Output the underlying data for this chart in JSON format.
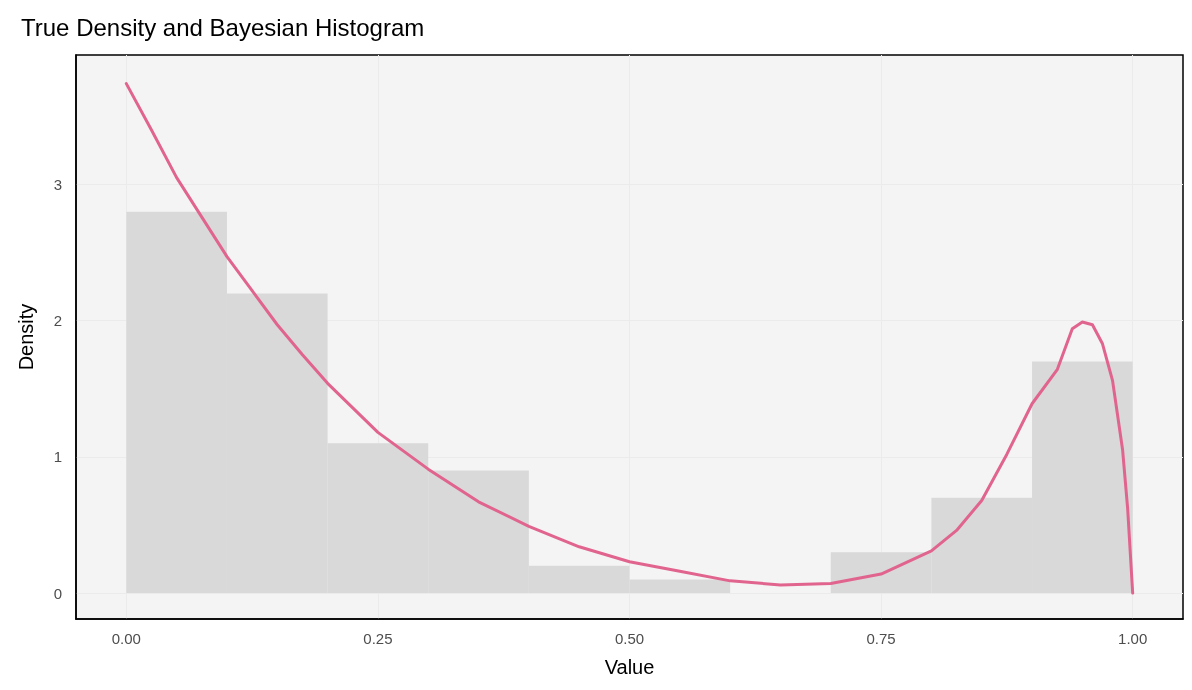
{
  "chart_data": {
    "type": "histogram",
    "title": "True Density and Bayesian Histogram",
    "xlabel": "Value",
    "ylabel": "Density",
    "bins": [
      0,
      0.1,
      0.2,
      0.3,
      0.4,
      0.5,
      0.6,
      0.7,
      0.8,
      0.9,
      1.0
    ],
    "values": [
      2.8,
      2.2,
      1.1,
      0.9,
      0.2,
      0.1,
      0,
      0.3,
      0.7,
      1.7
    ],
    "color": "#d9d9d9",
    "series": [
      {
        "type": "line",
        "color": "#e0648e",
        "x": [
          0,
          0.025,
          0.05,
          0.075,
          0.1,
          0.125,
          0.15,
          0.175,
          0.2,
          0.25,
          0.3,
          0.35,
          0.4,
          0.45,
          0.5,
          0.55,
          0.6,
          0.65,
          0.7,
          0.75,
          0.8,
          0.825,
          0.85,
          0.875,
          0.9,
          0.925,
          0.94,
          0.95,
          0.96,
          0.97,
          0.98,
          0.99,
          0.995,
          1.0
        ],
        "values": [
          3.74,
          3.4,
          3.05,
          2.76,
          2.47,
          2.22,
          1.97,
          1.75,
          1.54,
          1.18,
          0.91,
          0.67,
          0.49,
          0.34,
          0.23,
          0.16,
          0.09,
          0.06,
          0.07,
          0.14,
          0.31,
          0.46,
          0.68,
          1.02,
          1.39,
          1.64,
          1.94,
          1.99,
          1.97,
          1.83,
          1.56,
          1.05,
          0.62,
          0
        ]
      }
    ],
    "xlim": [
      -0.05,
      1.05
    ],
    "xticks": [
      {
        "value": 0,
        "label": "0.00"
      },
      {
        "value": 0.25,
        "label": "0.25"
      },
      {
        "value": 0.5,
        "label": "0.50"
      },
      {
        "value": 0.75,
        "label": "0.75"
      },
      {
        "value": 1,
        "label": "1.00"
      }
    ],
    "ylim": [
      -0.19,
      3.95
    ],
    "yticks": [
      0,
      1,
      2,
      3
    ],
    "grid": true,
    "line_style": "solid",
    "marker": "none"
  }
}
